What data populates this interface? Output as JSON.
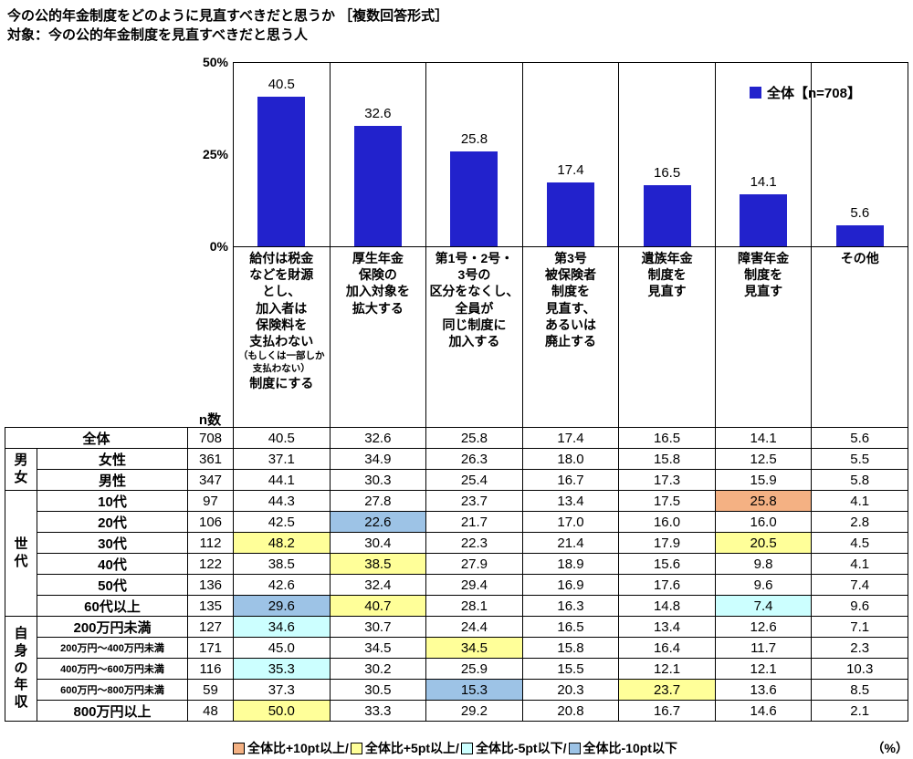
{
  "page": {
    "title_line1": "今の公的年金制度をどのように見直すべきだと思うか ［複数回答形式］",
    "title_line2": "対象：今の公的年金制度を見直すべきだと思う人",
    "n_header": "n数",
    "unit_label": "（%）"
  },
  "chart_data": {
    "type": "bar",
    "title": "今の公的年金制度をどのように見直すべきだと思うか［複数回答形式］",
    "legend": "全体【n=708】",
    "legend_position": "top-right",
    "bar_color": "#2222CC",
    "ylim": [
      0,
      50
    ],
    "y_ticks": [
      "50%",
      "25%",
      "0%"
    ],
    "grid": false,
    "categories": [
      "給付は税金などを財源とし、加入者は保険料を支払わない（もしくは一部しか支払わない）制度にする",
      "厚生年金保険の加入対象を拡大する",
      "第1号・2号・3号の区分をなくし、全員が同じ制度に加入する",
      "第3号被保険者制度を見直す、あるいは廃止する",
      "遺族年金制度を見直す",
      "障害年金制度を見直す",
      "その他"
    ],
    "values": [
      40.5,
      32.6,
      25.8,
      17.4,
      16.5,
      14.1,
      5.6
    ]
  },
  "columns": [
    {
      "main": "給付は税金\nなどを財源\nとし、\n加入者は\n保険料を\n支払わない",
      "note": "（もしくは一部しか\n支払わない）",
      "tail": "制度にする"
    },
    {
      "main": "厚生年金\n保険の\n加入対象を\n拡大する",
      "note": "",
      "tail": ""
    },
    {
      "main": "第1号・2号・\n3号の\n区分をなくし、\n全員が\n同じ制度に\n加入する",
      "note": "",
      "tail": ""
    },
    {
      "main": "第3号\n被保険者\n制度を\n見直す、\nあるいは\n廃止する",
      "note": "",
      "tail": ""
    },
    {
      "main": "遺族年金\n制度を\n見直す",
      "note": "",
      "tail": ""
    },
    {
      "main": "障害年金\n制度を\n見直す",
      "note": "",
      "tail": ""
    },
    {
      "main": "その他",
      "note": "",
      "tail": ""
    }
  ],
  "table": {
    "rows": [
      {
        "label": "全体",
        "colspan2": true,
        "n": "708",
        "values": [
          "40.5",
          "32.6",
          "25.8",
          "17.4",
          "16.5",
          "14.1",
          "5.6"
        ],
        "hl": [
          0,
          0,
          0,
          0,
          0,
          0,
          0
        ]
      },
      {
        "group": "男女",
        "groupSpan": 2,
        "label": "女性",
        "n": "361",
        "values": [
          "37.1",
          "34.9",
          "26.3",
          "18.0",
          "15.8",
          "12.5",
          "5.5"
        ],
        "hl": [
          0,
          0,
          0,
          0,
          0,
          0,
          0
        ]
      },
      {
        "label": "男性",
        "n": "347",
        "values": [
          "44.1",
          "30.3",
          "25.4",
          "16.7",
          "17.3",
          "15.9",
          "5.8"
        ],
        "hl": [
          0,
          0,
          0,
          0,
          0,
          0,
          0
        ]
      },
      {
        "group": "世代",
        "groupSpan": 6,
        "label": "10代",
        "n": "97",
        "values": [
          "44.3",
          "27.8",
          "23.7",
          "13.4",
          "17.5",
          "25.8",
          "4.1"
        ],
        "hl": [
          0,
          0,
          0,
          0,
          0,
          1,
          0
        ]
      },
      {
        "label": "20代",
        "n": "106",
        "values": [
          "42.5",
          "22.6",
          "21.7",
          "17.0",
          "16.0",
          "16.0",
          "2.8"
        ],
        "hl": [
          0,
          4,
          0,
          0,
          0,
          0,
          0
        ]
      },
      {
        "label": "30代",
        "n": "112",
        "values": [
          "48.2",
          "30.4",
          "22.3",
          "21.4",
          "17.9",
          "20.5",
          "4.5"
        ],
        "hl": [
          2,
          0,
          0,
          0,
          0,
          2,
          0
        ]
      },
      {
        "label": "40代",
        "n": "122",
        "values": [
          "38.5",
          "38.5",
          "27.9",
          "18.9",
          "15.6",
          "9.8",
          "4.1"
        ],
        "hl": [
          0,
          2,
          0,
          0,
          0,
          0,
          0
        ]
      },
      {
        "label": "50代",
        "n": "136",
        "values": [
          "42.6",
          "32.4",
          "29.4",
          "16.9",
          "17.6",
          "9.6",
          "7.4"
        ],
        "hl": [
          0,
          0,
          0,
          0,
          0,
          0,
          0
        ]
      },
      {
        "label": "60代以上",
        "n": "135",
        "values": [
          "29.6",
          "40.7",
          "28.1",
          "16.3",
          "14.8",
          "7.4",
          "9.6"
        ],
        "hl": [
          4,
          2,
          0,
          0,
          0,
          3,
          0
        ]
      },
      {
        "group": "自身の年収",
        "groupSpan": 5,
        "label": "200万円未満",
        "n": "127",
        "values": [
          "34.6",
          "30.7",
          "24.4",
          "16.5",
          "13.4",
          "12.6",
          "7.1"
        ],
        "hl": [
          3,
          0,
          0,
          0,
          0,
          0,
          0
        ]
      },
      {
        "label": "200万円～400万円未満",
        "small": true,
        "n": "171",
        "values": [
          "45.0",
          "34.5",
          "34.5",
          "15.8",
          "16.4",
          "11.7",
          "2.3"
        ],
        "hl": [
          0,
          0,
          2,
          0,
          0,
          0,
          0
        ]
      },
      {
        "label": "400万円～600万円未満",
        "small": true,
        "n": "116",
        "values": [
          "35.3",
          "30.2",
          "25.9",
          "15.5",
          "12.1",
          "12.1",
          "10.3"
        ],
        "hl": [
          3,
          0,
          0,
          0,
          0,
          0,
          0
        ]
      },
      {
        "label": "600万円～800万円未満",
        "small": true,
        "n": "59",
        "values": [
          "37.3",
          "30.5",
          "15.3",
          "20.3",
          "23.7",
          "13.6",
          "8.5"
        ],
        "hl": [
          0,
          0,
          4,
          0,
          2,
          0,
          0
        ]
      },
      {
        "label": "800万円以上",
        "n": "48",
        "values": [
          "50.0",
          "33.3",
          "29.2",
          "20.8",
          "16.7",
          "14.6",
          "2.1"
        ],
        "hl": [
          2,
          0,
          0,
          0,
          0,
          0,
          0
        ]
      }
    ]
  },
  "highlight_colors": {
    "plus10": "#F4B183",
    "plus5": "#FFFF99",
    "minus5": "#CCFFFF",
    "minus10": "#9DC3E6"
  },
  "highlight_legend": [
    {
      "label": "全体比+10pt以上/",
      "color": "#F4B183"
    },
    {
      "label": "全体比+5pt以上/",
      "color": "#FFFF99"
    },
    {
      "label": "全体比-5pt以下/",
      "color": "#CCFFFF"
    },
    {
      "label": "全体比-10pt以下",
      "color": "#9DC3E6"
    }
  ]
}
